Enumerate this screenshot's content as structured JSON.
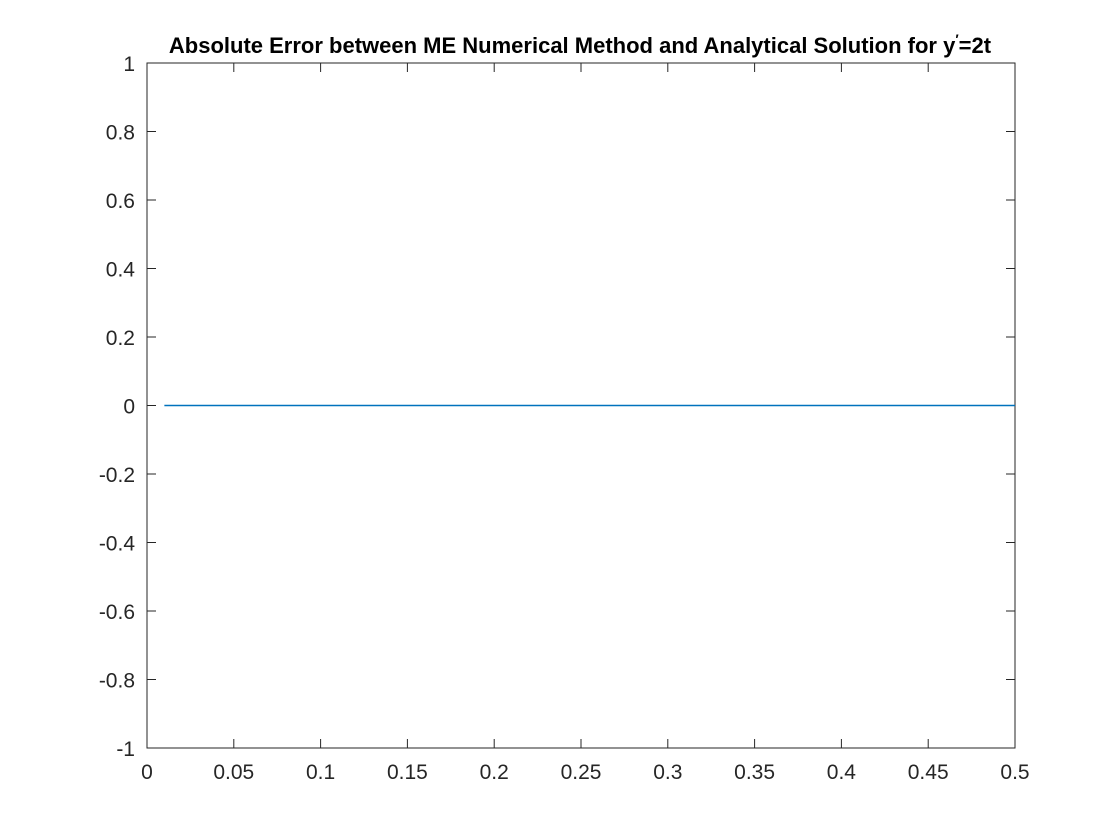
{
  "chart_data": {
    "type": "line",
    "title_main": "Absolute Error between ME Numerical Method and Analytical Solution for y",
    "title_prime": "′",
    "title_tail": "=2t",
    "xlabel": "",
    "ylabel": "",
    "xlim": [
      0,
      0.5
    ],
    "ylim": [
      -1,
      1
    ],
    "x_ticks": [
      0,
      0.05,
      0.1,
      0.15,
      0.2,
      0.25,
      0.3,
      0.35,
      0.4,
      0.45,
      0.5
    ],
    "x_tick_labels": [
      "0",
      "0.05",
      "0.1",
      "0.15",
      "0.2",
      "0.25",
      "0.3",
      "0.35",
      "0.4",
      "0.45",
      "0.5"
    ],
    "y_ticks": [
      -1,
      -0.8,
      -0.6,
      -0.4,
      -0.2,
      0,
      0.2,
      0.4,
      0.6,
      0.8,
      1
    ],
    "y_tick_labels": [
      "-1",
      "-0.8",
      "-0.6",
      "-0.4",
      "-0.2",
      "0",
      "0.2",
      "0.4",
      "0.6",
      "0.8",
      "1"
    ],
    "grid": false,
    "series": [
      {
        "color": "#0072BD",
        "x": [
          0.01,
          0.5
        ],
        "y": [
          0,
          0
        ]
      }
    ]
  }
}
